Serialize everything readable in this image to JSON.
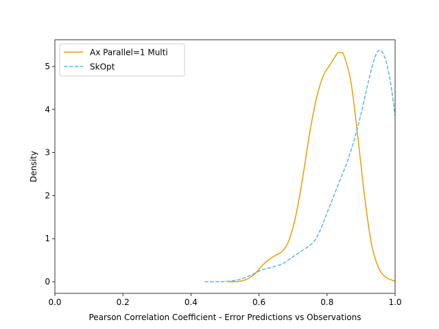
{
  "chart_data": {
    "type": "line",
    "title": "",
    "xlabel": "Pearson Correlation Coefficient - Error Predictions vs Observations",
    "ylabel": "Density",
    "xlim": [
      0.0,
      1.0
    ],
    "ylim": [
      -0.27,
      5.62
    ],
    "x_ticks": [
      0.0,
      0.2,
      0.4,
      0.6,
      0.8,
      1.0
    ],
    "x_tick_labels": [
      "0.0",
      "0.2",
      "0.4",
      "0.6",
      "0.8",
      "1.0"
    ],
    "y_ticks": [
      0,
      1,
      2,
      3,
      4,
      5
    ],
    "y_tick_labels": [
      "0",
      "1",
      "2",
      "3",
      "4",
      "5"
    ],
    "grid": false,
    "legend_position": "top-left",
    "series": [
      {
        "name": "Ax Parallel=1 Multi",
        "color": "#e69f00",
        "line_style": "solid",
        "points": [
          [
            0.51,
            0.0
          ],
          [
            0.53,
            0.0
          ],
          [
            0.55,
            0.02
          ],
          [
            0.57,
            0.08
          ],
          [
            0.59,
            0.2
          ],
          [
            0.61,
            0.38
          ],
          [
            0.63,
            0.52
          ],
          [
            0.65,
            0.62
          ],
          [
            0.67,
            0.72
          ],
          [
            0.69,
            1.0
          ],
          [
            0.71,
            1.6
          ],
          [
            0.73,
            2.5
          ],
          [
            0.75,
            3.5
          ],
          [
            0.77,
            4.3
          ],
          [
            0.79,
            4.8
          ],
          [
            0.81,
            5.05
          ],
          [
            0.83,
            5.3
          ],
          [
            0.84,
            5.32
          ],
          [
            0.85,
            5.25
          ],
          [
            0.87,
            4.65
          ],
          [
            0.89,
            3.4
          ],
          [
            0.91,
            2.0
          ],
          [
            0.93,
            0.9
          ],
          [
            0.95,
            0.35
          ],
          [
            0.97,
            0.12
          ],
          [
            0.99,
            0.04
          ],
          [
            1.0,
            0.02
          ]
        ]
      },
      {
        "name": "SkOpt",
        "color": "#56b4e9",
        "line_style": "dashed",
        "points": [
          [
            0.44,
            0.0
          ],
          [
            0.48,
            0.0
          ],
          [
            0.52,
            0.02
          ],
          [
            0.55,
            0.07
          ],
          [
            0.58,
            0.17
          ],
          [
            0.61,
            0.28
          ],
          [
            0.64,
            0.34
          ],
          [
            0.67,
            0.42
          ],
          [
            0.7,
            0.58
          ],
          [
            0.73,
            0.74
          ],
          [
            0.76,
            0.92
          ],
          [
            0.78,
            1.2
          ],
          [
            0.8,
            1.6
          ],
          [
            0.82,
            2.0
          ],
          [
            0.84,
            2.4
          ],
          [
            0.86,
            2.8
          ],
          [
            0.88,
            3.3
          ],
          [
            0.9,
            3.9
          ],
          [
            0.92,
            4.6
          ],
          [
            0.94,
            5.2
          ],
          [
            0.955,
            5.38
          ],
          [
            0.97,
            5.2
          ],
          [
            0.98,
            4.9
          ],
          [
            0.99,
            4.45
          ],
          [
            1.0,
            3.85
          ]
        ]
      }
    ]
  }
}
